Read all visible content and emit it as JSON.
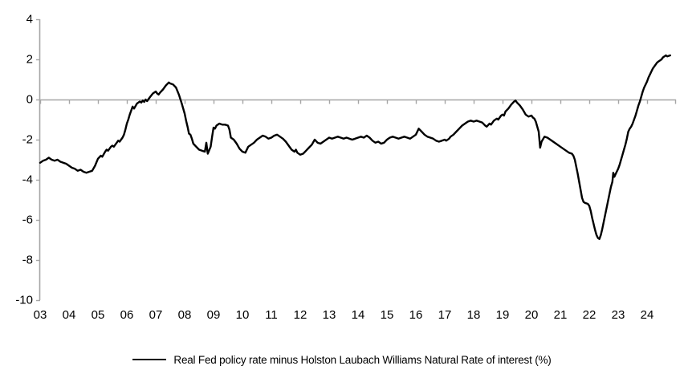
{
  "chart_data": {
    "type": "line",
    "title": "",
    "xlabel": "",
    "ylabel": "",
    "xlim": [
      2003,
      2025
    ],
    "ylim": [
      -10,
      4
    ],
    "grid": false,
    "zero_line": true,
    "legend_position": "bottom-center",
    "axis_color": "#a6a6a6",
    "label_color": "#000000",
    "y_ticks": [
      4,
      2,
      0,
      -2,
      -4,
      -6,
      -8,
      -10
    ],
    "x_tick_years": [
      2003,
      2004,
      2005,
      2006,
      2007,
      2008,
      2009,
      2010,
      2011,
      2012,
      2013,
      2014,
      2015,
      2016,
      2017,
      2018,
      2019,
      2020,
      2021,
      2022,
      2023,
      2024
    ],
    "x_tick_labels": [
      "03",
      "04",
      "05",
      "06",
      "07",
      "08",
      "09",
      "10",
      "11",
      "12",
      "13",
      "14",
      "15",
      "16",
      "17",
      "18",
      "19",
      "20",
      "21",
      "22",
      "23",
      "24"
    ],
    "series": [
      {
        "name": "Real Fed policy rate minus Holston Laubach Williams Natural Rate of interest (%)",
        "color": "#000000",
        "points": [
          [
            2003.0,
            -3.15
          ],
          [
            2003.1,
            -3.05
          ],
          [
            2003.2,
            -3.0
          ],
          [
            2003.3,
            -2.9
          ],
          [
            2003.4,
            -3.0
          ],
          [
            2003.5,
            -3.05
          ],
          [
            2003.6,
            -3.0
          ],
          [
            2003.7,
            -3.1
          ],
          [
            2003.8,
            -3.15
          ],
          [
            2003.9,
            -3.2
          ],
          [
            2004.0,
            -3.3
          ],
          [
            2004.1,
            -3.4
          ],
          [
            2004.2,
            -3.45
          ],
          [
            2004.3,
            -3.55
          ],
          [
            2004.4,
            -3.5
          ],
          [
            2004.5,
            -3.6
          ],
          [
            2004.6,
            -3.65
          ],
          [
            2004.7,
            -3.6
          ],
          [
            2004.8,
            -3.55
          ],
          [
            2004.9,
            -3.3
          ],
          [
            2005.0,
            -2.95
          ],
          [
            2005.1,
            -2.8
          ],
          [
            2005.15,
            -2.85
          ],
          [
            2005.25,
            -2.6
          ],
          [
            2005.3,
            -2.5
          ],
          [
            2005.35,
            -2.55
          ],
          [
            2005.45,
            -2.35
          ],
          [
            2005.5,
            -2.3
          ],
          [
            2005.55,
            -2.35
          ],
          [
            2005.65,
            -2.15
          ],
          [
            2005.7,
            -2.05
          ],
          [
            2005.75,
            -2.1
          ],
          [
            2005.85,
            -1.9
          ],
          [
            2005.9,
            -1.75
          ],
          [
            2005.95,
            -1.5
          ],
          [
            2006.0,
            -1.2
          ],
          [
            2006.05,
            -1.0
          ],
          [
            2006.1,
            -0.75
          ],
          [
            2006.15,
            -0.55
          ],
          [
            2006.2,
            -0.35
          ],
          [
            2006.25,
            -0.45
          ],
          [
            2006.35,
            -0.2
          ],
          [
            2006.45,
            -0.1
          ],
          [
            2006.5,
            -0.15
          ],
          [
            2006.55,
            -0.05
          ],
          [
            2006.6,
            -0.12
          ],
          [
            2006.65,
            0.0
          ],
          [
            2006.7,
            -0.08
          ],
          [
            2006.8,
            0.12
          ],
          [
            2006.9,
            0.3
          ],
          [
            2007.0,
            0.4
          ],
          [
            2007.05,
            0.3
          ],
          [
            2007.1,
            0.25
          ],
          [
            2007.15,
            0.35
          ],
          [
            2007.25,
            0.5
          ],
          [
            2007.35,
            0.7
          ],
          [
            2007.45,
            0.85
          ],
          [
            2007.5,
            0.8
          ],
          [
            2007.6,
            0.75
          ],
          [
            2007.7,
            0.6
          ],
          [
            2007.8,
            0.25
          ],
          [
            2007.9,
            -0.2
          ],
          [
            2008.0,
            -0.7
          ],
          [
            2008.05,
            -1.05
          ],
          [
            2008.1,
            -1.35
          ],
          [
            2008.15,
            -1.7
          ],
          [
            2008.2,
            -1.75
          ],
          [
            2008.25,
            -1.95
          ],
          [
            2008.3,
            -2.2
          ],
          [
            2008.4,
            -2.35
          ],
          [
            2008.5,
            -2.5
          ],
          [
            2008.6,
            -2.55
          ],
          [
            2008.7,
            -2.6
          ],
          [
            2008.75,
            -2.15
          ],
          [
            2008.8,
            -2.7
          ],
          [
            2008.9,
            -2.35
          ],
          [
            2008.95,
            -1.85
          ],
          [
            2009.0,
            -1.4
          ],
          [
            2009.05,
            -1.45
          ],
          [
            2009.1,
            -1.3
          ],
          [
            2009.2,
            -1.2
          ],
          [
            2009.3,
            -1.25
          ],
          [
            2009.4,
            -1.25
          ],
          [
            2009.5,
            -1.3
          ],
          [
            2009.55,
            -1.5
          ],
          [
            2009.6,
            -1.9
          ],
          [
            2009.7,
            -2.0
          ],
          [
            2009.8,
            -2.2
          ],
          [
            2009.9,
            -2.45
          ],
          [
            2010.0,
            -2.6
          ],
          [
            2010.1,
            -2.65
          ],
          [
            2010.2,
            -2.35
          ],
          [
            2010.3,
            -2.25
          ],
          [
            2010.4,
            -2.15
          ],
          [
            2010.5,
            -2.0
          ],
          [
            2010.6,
            -1.9
          ],
          [
            2010.7,
            -1.8
          ],
          [
            2010.8,
            -1.85
          ],
          [
            2010.9,
            -1.95
          ],
          [
            2011.0,
            -1.9
          ],
          [
            2011.1,
            -1.8
          ],
          [
            2011.2,
            -1.75
          ],
          [
            2011.3,
            -1.85
          ],
          [
            2011.4,
            -1.95
          ],
          [
            2011.5,
            -2.1
          ],
          [
            2011.6,
            -2.3
          ],
          [
            2011.7,
            -2.5
          ],
          [
            2011.8,
            -2.6
          ],
          [
            2011.85,
            -2.5
          ],
          [
            2011.9,
            -2.65
          ],
          [
            2012.0,
            -2.75
          ],
          [
            2012.1,
            -2.7
          ],
          [
            2012.2,
            -2.55
          ],
          [
            2012.3,
            -2.4
          ],
          [
            2012.4,
            -2.25
          ],
          [
            2012.5,
            -2.0
          ],
          [
            2012.6,
            -2.15
          ],
          [
            2012.7,
            -2.2
          ],
          [
            2012.8,
            -2.1
          ],
          [
            2012.9,
            -2.0
          ],
          [
            2013.0,
            -1.9
          ],
          [
            2013.1,
            -1.95
          ],
          [
            2013.2,
            -1.9
          ],
          [
            2013.3,
            -1.85
          ],
          [
            2013.4,
            -1.9
          ],
          [
            2013.5,
            -1.95
          ],
          [
            2013.6,
            -1.9
          ],
          [
            2013.7,
            -1.95
          ],
          [
            2013.8,
            -2.0
          ],
          [
            2013.9,
            -1.95
          ],
          [
            2014.0,
            -1.9
          ],
          [
            2014.1,
            -1.85
          ],
          [
            2014.2,
            -1.9
          ],
          [
            2014.3,
            -1.8
          ],
          [
            2014.4,
            -1.9
          ],
          [
            2014.5,
            -2.05
          ],
          [
            2014.6,
            -2.15
          ],
          [
            2014.7,
            -2.1
          ],
          [
            2014.8,
            -2.2
          ],
          [
            2014.9,
            -2.15
          ],
          [
            2015.0,
            -2.0
          ],
          [
            2015.1,
            -1.9
          ],
          [
            2015.2,
            -1.85
          ],
          [
            2015.3,
            -1.9
          ],
          [
            2015.4,
            -1.95
          ],
          [
            2015.5,
            -1.9
          ],
          [
            2015.6,
            -1.85
          ],
          [
            2015.7,
            -1.9
          ],
          [
            2015.8,
            -1.95
          ],
          [
            2015.9,
            -1.85
          ],
          [
            2016.0,
            -1.75
          ],
          [
            2016.05,
            -1.6
          ],
          [
            2016.1,
            -1.45
          ],
          [
            2016.2,
            -1.6
          ],
          [
            2016.3,
            -1.75
          ],
          [
            2016.4,
            -1.85
          ],
          [
            2016.5,
            -1.9
          ],
          [
            2016.6,
            -1.95
          ],
          [
            2016.7,
            -2.05
          ],
          [
            2016.8,
            -2.1
          ],
          [
            2016.9,
            -2.05
          ],
          [
            2017.0,
            -2.0
          ],
          [
            2017.05,
            -2.05
          ],
          [
            2017.15,
            -1.95
          ],
          [
            2017.2,
            -1.85
          ],
          [
            2017.3,
            -1.75
          ],
          [
            2017.4,
            -1.6
          ],
          [
            2017.5,
            -1.45
          ],
          [
            2017.6,
            -1.3
          ],
          [
            2017.7,
            -1.2
          ],
          [
            2017.8,
            -1.1
          ],
          [
            2017.9,
            -1.05
          ],
          [
            2018.0,
            -1.1
          ],
          [
            2018.1,
            -1.05
          ],
          [
            2018.2,
            -1.1
          ],
          [
            2018.3,
            -1.15
          ],
          [
            2018.4,
            -1.3
          ],
          [
            2018.45,
            -1.35
          ],
          [
            2018.55,
            -1.2
          ],
          [
            2018.6,
            -1.25
          ],
          [
            2018.7,
            -1.05
          ],
          [
            2018.8,
            -0.95
          ],
          [
            2018.85,
            -1.0
          ],
          [
            2018.95,
            -0.8
          ],
          [
            2019.0,
            -0.75
          ],
          [
            2019.05,
            -0.8
          ],
          [
            2019.1,
            -0.6
          ],
          [
            2019.2,
            -0.45
          ],
          [
            2019.3,
            -0.25
          ],
          [
            2019.4,
            -0.1
          ],
          [
            2019.45,
            -0.05
          ],
          [
            2019.5,
            -0.15
          ],
          [
            2019.6,
            -0.3
          ],
          [
            2019.7,
            -0.5
          ],
          [
            2019.8,
            -0.75
          ],
          [
            2019.9,
            -0.85
          ],
          [
            2020.0,
            -0.8
          ],
          [
            2020.05,
            -0.9
          ],
          [
            2020.1,
            -0.95
          ],
          [
            2020.15,
            -1.1
          ],
          [
            2020.25,
            -1.6
          ],
          [
            2020.3,
            -2.4
          ],
          [
            2020.35,
            -2.1
          ],
          [
            2020.45,
            -1.85
          ],
          [
            2020.55,
            -1.9
          ],
          [
            2020.65,
            -2.0
          ],
          [
            2020.75,
            -2.1
          ],
          [
            2020.85,
            -2.2
          ],
          [
            2021.0,
            -2.35
          ],
          [
            2021.1,
            -2.45
          ],
          [
            2021.2,
            -2.55
          ],
          [
            2021.3,
            -2.65
          ],
          [
            2021.4,
            -2.7
          ],
          [
            2021.45,
            -2.8
          ],
          [
            2021.5,
            -3.0
          ],
          [
            2021.55,
            -3.35
          ],
          [
            2021.6,
            -3.7
          ],
          [
            2021.65,
            -4.1
          ],
          [
            2021.7,
            -4.5
          ],
          [
            2021.75,
            -4.9
          ],
          [
            2021.8,
            -5.1
          ],
          [
            2021.85,
            -5.15
          ],
          [
            2021.95,
            -5.2
          ],
          [
            2022.0,
            -5.3
          ],
          [
            2022.05,
            -5.55
          ],
          [
            2022.1,
            -5.9
          ],
          [
            2022.15,
            -6.2
          ],
          [
            2022.2,
            -6.5
          ],
          [
            2022.25,
            -6.75
          ],
          [
            2022.3,
            -6.9
          ],
          [
            2022.35,
            -6.95
          ],
          [
            2022.4,
            -6.75
          ],
          [
            2022.45,
            -6.45
          ],
          [
            2022.5,
            -6.1
          ],
          [
            2022.55,
            -5.75
          ],
          [
            2022.6,
            -5.4
          ],
          [
            2022.65,
            -5.05
          ],
          [
            2022.7,
            -4.7
          ],
          [
            2022.75,
            -4.35
          ],
          [
            2022.8,
            -4.1
          ],
          [
            2022.83,
            -3.65
          ],
          [
            2022.87,
            -3.85
          ],
          [
            2022.9,
            -3.75
          ],
          [
            2022.95,
            -3.6
          ],
          [
            2023.0,
            -3.45
          ],
          [
            2023.05,
            -3.25
          ],
          [
            2023.1,
            -3.0
          ],
          [
            2023.15,
            -2.75
          ],
          [
            2023.2,
            -2.5
          ],
          [
            2023.25,
            -2.25
          ],
          [
            2023.3,
            -1.95
          ],
          [
            2023.35,
            -1.6
          ],
          [
            2023.4,
            -1.45
          ],
          [
            2023.45,
            -1.35
          ],
          [
            2023.5,
            -1.2
          ],
          [
            2023.55,
            -1.0
          ],
          [
            2023.6,
            -0.8
          ],
          [
            2023.65,
            -0.55
          ],
          [
            2023.7,
            -0.3
          ],
          [
            2023.75,
            -0.1
          ],
          [
            2023.8,
            0.15
          ],
          [
            2023.85,
            0.4
          ],
          [
            2023.9,
            0.6
          ],
          [
            2023.95,
            0.75
          ],
          [
            2024.0,
            0.9
          ],
          [
            2024.05,
            1.1
          ],
          [
            2024.1,
            1.25
          ],
          [
            2024.15,
            1.4
          ],
          [
            2024.2,
            1.55
          ],
          [
            2024.25,
            1.65
          ],
          [
            2024.3,
            1.75
          ],
          [
            2024.35,
            1.85
          ],
          [
            2024.4,
            1.9
          ],
          [
            2024.45,
            1.95
          ],
          [
            2024.5,
            2.0
          ],
          [
            2024.55,
            2.1
          ],
          [
            2024.6,
            2.15
          ],
          [
            2024.65,
            2.2
          ],
          [
            2024.7,
            2.15
          ],
          [
            2024.8,
            2.2
          ]
        ]
      }
    ]
  },
  "legend": {
    "label": "Real Fed policy rate minus Holston Laubach Williams Natural Rate of interest (%)"
  }
}
